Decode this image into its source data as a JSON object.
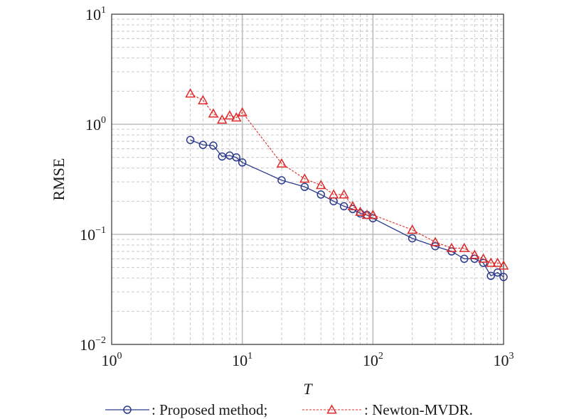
{
  "chart_data": {
    "type": "line",
    "xscale": "log",
    "yscale": "log",
    "xlim": [
      1,
      1000
    ],
    "ylim": [
      0.01,
      10
    ],
    "xlabel": "T",
    "ylabel": "RMSE",
    "grid": true,
    "legend_position": "bottom",
    "x_ticks": [
      {
        "base": "10",
        "exp": "0"
      },
      {
        "base": "10",
        "exp": "1"
      },
      {
        "base": "10",
        "exp": "2"
      },
      {
        "base": "10",
        "exp": "3"
      }
    ],
    "y_ticks": [
      {
        "base": "10",
        "exp": "−2"
      },
      {
        "base": "10",
        "exp": "−1"
      },
      {
        "base": "10",
        "exp": "0"
      },
      {
        "base": "10",
        "exp": "1"
      }
    ],
    "series": [
      {
        "name": ": Proposed method;",
        "color": "#2b3a8c",
        "marker": "circle",
        "line_style": "solid",
        "x": [
          4,
          5,
          6,
          7,
          8,
          9,
          10,
          20,
          30,
          40,
          50,
          60,
          70,
          80,
          90,
          100,
          200,
          300,
          400,
          500,
          600,
          700,
          800,
          900,
          1000
        ],
        "y": [
          0.72,
          0.65,
          0.64,
          0.51,
          0.52,
          0.5,
          0.45,
          0.31,
          0.27,
          0.23,
          0.2,
          0.18,
          0.17,
          0.155,
          0.15,
          0.14,
          0.092,
          0.078,
          0.07,
          0.06,
          0.06,
          0.055,
          0.042,
          0.045,
          0.041
        ]
      },
      {
        "name": ": Newton-MVDR.",
        "color": "#e02a2a",
        "marker": "triangle",
        "line_style": "dashed",
        "x": [
          4,
          5,
          6,
          7,
          8,
          9,
          10,
          20,
          30,
          40,
          50,
          60,
          70,
          80,
          90,
          100,
          200,
          300,
          400,
          500,
          600,
          700,
          800,
          900,
          1000
        ],
        "y": [
          1.9,
          1.65,
          1.25,
          1.1,
          1.2,
          1.15,
          1.28,
          0.44,
          0.32,
          0.28,
          0.23,
          0.23,
          0.18,
          0.16,
          0.15,
          0.15,
          0.11,
          0.085,
          0.075,
          0.075,
          0.065,
          0.06,
          0.055,
          0.055,
          0.052
        ]
      }
    ]
  }
}
